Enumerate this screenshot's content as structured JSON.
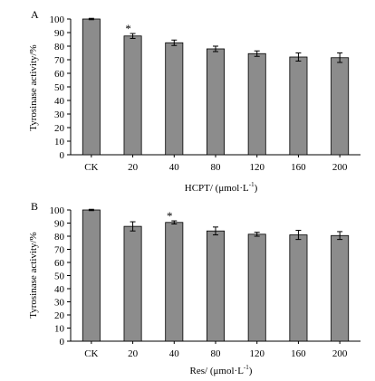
{
  "chart_data": [
    {
      "type": "bar",
      "panel_label": "A",
      "categories": [
        "CK",
        "20",
        "40",
        "80",
        "120",
        "160",
        "200"
      ],
      "values": [
        100,
        87.5,
        82.5,
        78,
        74.5,
        72,
        71.5
      ],
      "errors": [
        0.5,
        1.8,
        2.0,
        2.0,
        2.0,
        3.0,
        3.5
      ],
      "annotations": [
        {
          "category": "20",
          "text": "*"
        }
      ],
      "xlabel": "HCPT/ (μmol·L",
      "xlabel_sup": "-1",
      "xlabel_tail": ")",
      "ylabel": "Tyrosinase activity/%",
      "ylim": [
        0,
        100
      ],
      "yticks": [
        "0",
        "10",
        "20",
        "30",
        "40",
        "50",
        "60",
        "70",
        "80",
        "90",
        "100"
      ],
      "bar_color": "#8c8c8c",
      "grid": false
    },
    {
      "type": "bar",
      "panel_label": "B",
      "categories": [
        "CK",
        "20",
        "40",
        "80",
        "120",
        "160",
        "200"
      ],
      "values": [
        100,
        87.5,
        90.5,
        84,
        81.5,
        81,
        80.5
      ],
      "errors": [
        0.5,
        3.5,
        1.2,
        3.0,
        1.5,
        3.5,
        3.0
      ],
      "annotations": [
        {
          "category": "40",
          "text": "*"
        }
      ],
      "xlabel": "Res/ (μmol·L",
      "xlabel_sup": "-1",
      "xlabel_tail": ")",
      "ylabel": "Tyrosinase activity/%",
      "ylim": [
        0,
        100
      ],
      "yticks": [
        "0",
        "10",
        "20",
        "30",
        "40",
        "50",
        "60",
        "70",
        "80",
        "90",
        "100"
      ],
      "bar_color": "#8c8c8c",
      "grid": false
    }
  ]
}
